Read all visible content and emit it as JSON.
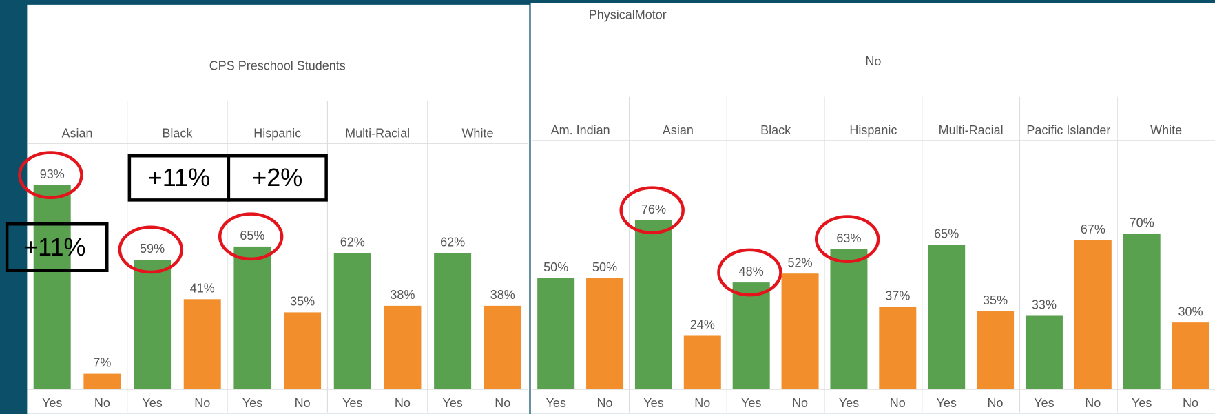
{
  "chart_data": [
    {
      "type": "bar",
      "title": "CPS Preschool Students",
      "categories": [
        "Asian",
        "Black",
        "Hispanic",
        "Multi-Racial",
        "White"
      ],
      "series": [
        {
          "name": "Yes",
          "color": "#59a14f",
          "values": [
            93,
            59,
            65,
            62,
            62
          ],
          "value_labels": [
            "93%",
            "59%",
            "65%",
            "62%",
            "62%"
          ]
        },
        {
          "name": "No",
          "color": "#f28e2b",
          "values": [
            7,
            41,
            35,
            38,
            38
          ],
          "value_labels": [
            "7%",
            "41%",
            "35%",
            "38%",
            "38%"
          ]
        }
      ],
      "ylim": [
        0,
        112
      ],
      "annotations": [
        "+11%",
        "+11%",
        "+2%"
      ]
    },
    {
      "type": "bar",
      "header": "PhysicalMotor",
      "title": "No",
      "categories": [
        "Am. Indian",
        "Asian",
        "Black",
        "Hispanic",
        "Multi-Racial",
        "Pacific Islander",
        "White"
      ],
      "series": [
        {
          "name": "Yes",
          "color": "#59a14f",
          "values": [
            50,
            76,
            48,
            63,
            65,
            33,
            70
          ],
          "value_labels": [
            "50%",
            "76%",
            "48%",
            "63%",
            "65%",
            "33%",
            "70%"
          ]
        },
        {
          "name": "No",
          "color": "#f28e2b",
          "values": [
            50,
            24,
            52,
            37,
            35,
            67,
            30
          ],
          "value_labels": [
            "50%",
            "24%",
            "52%",
            "37%",
            "35%",
            "67%",
            "30%"
          ]
        }
      ],
      "ylim": [
        0,
        112
      ]
    }
  ]
}
